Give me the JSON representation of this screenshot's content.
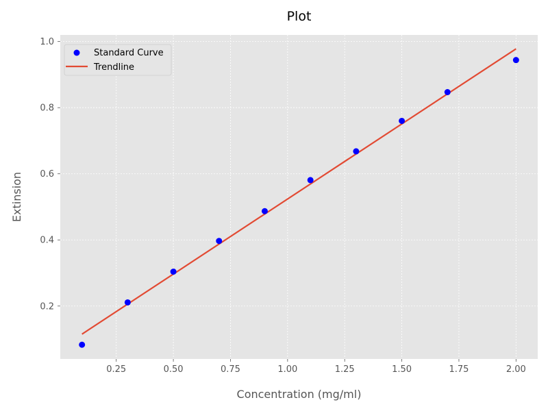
{
  "chart_data": {
    "type": "scatter",
    "title": "Plot",
    "xlabel": "Concentration (mg/ml)",
    "ylabel": "Extinsion",
    "xlim": [
      0.005,
      2.095
    ],
    "ylim": [
      0.04,
      1.02
    ],
    "x_ticks": [
      "0.25",
      "0.50",
      "0.75",
      "1.00",
      "1.25",
      "1.50",
      "1.75",
      "2.00"
    ],
    "y_ticks": [
      "0.2",
      "0.4",
      "0.6",
      "0.8",
      "1.0"
    ],
    "grid": true,
    "legend_placement": "top-left",
    "series": [
      {
        "name": "Standard Curve",
        "kind": "scatter",
        "color": "#0000ff",
        "x": [
          0.1,
          0.3,
          0.5,
          0.7,
          0.9,
          1.1,
          1.3,
          1.5,
          1.7,
          2.0
        ],
        "y": [
          0.083,
          0.211,
          0.304,
          0.397,
          0.487,
          0.581,
          0.668,
          0.76,
          0.847,
          0.944
        ]
      },
      {
        "name": "Trendline",
        "kind": "line",
        "color": "#e24a33",
        "x": [
          0.1,
          2.0
        ],
        "y": [
          0.115,
          0.978
        ]
      }
    ]
  }
}
